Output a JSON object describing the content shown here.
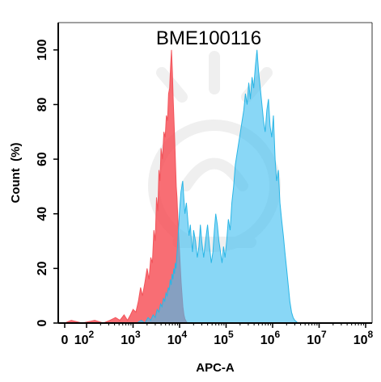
{
  "chart_data": {
    "type": "area",
    "title": "BME100116",
    "xlabel": "APC-A",
    "ylabel": "Count  (%)",
    "x_scale": "log",
    "x_tick_labels": [
      {
        "value": 0,
        "base": "0",
        "exp": ""
      },
      {
        "value": 100,
        "base": "10",
        "exp": "2"
      },
      {
        "value": 1000,
        "base": "10",
        "exp": "3"
      },
      {
        "value": 10000,
        "base": "10",
        "exp": "4"
      },
      {
        "value": 100000,
        "base": "10",
        "exp": "5"
      },
      {
        "value": 1000000,
        "base": "10",
        "exp": "6"
      },
      {
        "value": 10000000,
        "base": "10",
        "exp": "7"
      },
      {
        "value": 100000000,
        "base": "10",
        "exp": "8"
      }
    ],
    "y_ticks": [
      0,
      20,
      40,
      60,
      80,
      100
    ],
    "ylim": [
      0,
      110
    ],
    "grid": false,
    "legend": "none",
    "series": [
      {
        "color": "#f2545b",
        "fill": "rgba(247,78,86,0.82)",
        "x": [
          0,
          30,
          80,
          150,
          230,
          320,
          420,
          520,
          640,
          760,
          880,
          1000,
          1150,
          1300,
          1450,
          1600,
          1800,
          2000,
          2200,
          2400,
          2600,
          2800,
          3000,
          3200,
          3400,
          3600,
          3800,
          4000,
          4300,
          4600,
          4900,
          5200,
          5500,
          5800,
          6100,
          6400,
          6700,
          7000,
          7300,
          7600,
          7900,
          8200,
          8500,
          8800,
          9100,
          9400,
          9700,
          10000,
          10400,
          10800,
          11300,
          11800,
          12400,
          13000,
          14000,
          15000
        ],
        "y": [
          0,
          1,
          0,
          1,
          0,
          1,
          2,
          1,
          3,
          1,
          3,
          5,
          4,
          8,
          13,
          10,
          15,
          20,
          16,
          24,
          22,
          34,
          30,
          46,
          41,
          56,
          52,
          64,
          60,
          70,
          68,
          76,
          74,
          84,
          86,
          94,
          100,
          92,
          82,
          74,
          66,
          58,
          50,
          46,
          40,
          34,
          30,
          26,
          20,
          15,
          10,
          6,
          3,
          1.5,
          0.5,
          0
        ]
      },
      {
        "color": "#2ab6e6",
        "fill": "rgba(64,190,240,0.62)",
        "x": [
          1200,
          1500,
          1800,
          2100,
          2400,
          2700,
          3000,
          3300,
          3600,
          3900,
          4200,
          4500,
          4800,
          5100,
          5400,
          5700,
          6000,
          6300,
          6600,
          6900,
          7200,
          7500,
          7800,
          8100,
          8400,
          8700,
          9000,
          9300,
          9600,
          9900,
          10300,
          10700,
          11200,
          11700,
          12300,
          13000,
          14000,
          15000,
          16000,
          17000,
          18000,
          19000,
          20000,
          22000,
          24000,
          26000,
          28000,
          30000,
          33000,
          36000,
          40000,
          44000,
          48000,
          52000,
          56000,
          60000,
          65000,
          70000,
          76000,
          82000,
          88000,
          95000,
          103000,
          112000,
          122000,
          133000,
          145000,
          158000,
          172000,
          187000,
          203000,
          221000,
          240000,
          260000,
          283000,
          307000,
          333000,
          362000,
          392000,
          426000,
          462000,
          501000,
          543000,
          589000,
          639000,
          693000,
          752000,
          816000,
          885000,
          960000,
          1040000,
          1130000,
          1220000,
          1330000,
          1440000,
          1560000,
          1700000,
          1840000,
          2000000,
          2170000,
          2350000,
          2550000,
          2770000,
          3000000,
          3250000,
          3500000,
          3800000,
          4100000,
          4500000
        ],
        "y": [
          0,
          1,
          0,
          2,
          1,
          3,
          2,
          5,
          4,
          7,
          6,
          9,
          8,
          11,
          10,
          13,
          12,
          16,
          14,
          18,
          16,
          20,
          18,
          22,
          20,
          24,
          28,
          32,
          36,
          40,
          44,
          48,
          50,
          52,
          46,
          40,
          44,
          38,
          32,
          36,
          30,
          26,
          34,
          30,
          24,
          28,
          36,
          30,
          24,
          30,
          36,
          28,
          22,
          26,
          34,
          40,
          36,
          30,
          26,
          22,
          28,
          24,
          30,
          38,
          34,
          44,
          50,
          58,
          62,
          66,
          70,
          74,
          78,
          84,
          80,
          88,
          82,
          90,
          86,
          94,
          100,
          92,
          86,
          80,
          74,
          70,
          78,
          82,
          72,
          68,
          76,
          60,
          52,
          56,
          44,
          38,
          32,
          26,
          20,
          14,
          8,
          4,
          2,
          1,
          0.5,
          0,
          0,
          0,
          0
        ]
      }
    ]
  }
}
